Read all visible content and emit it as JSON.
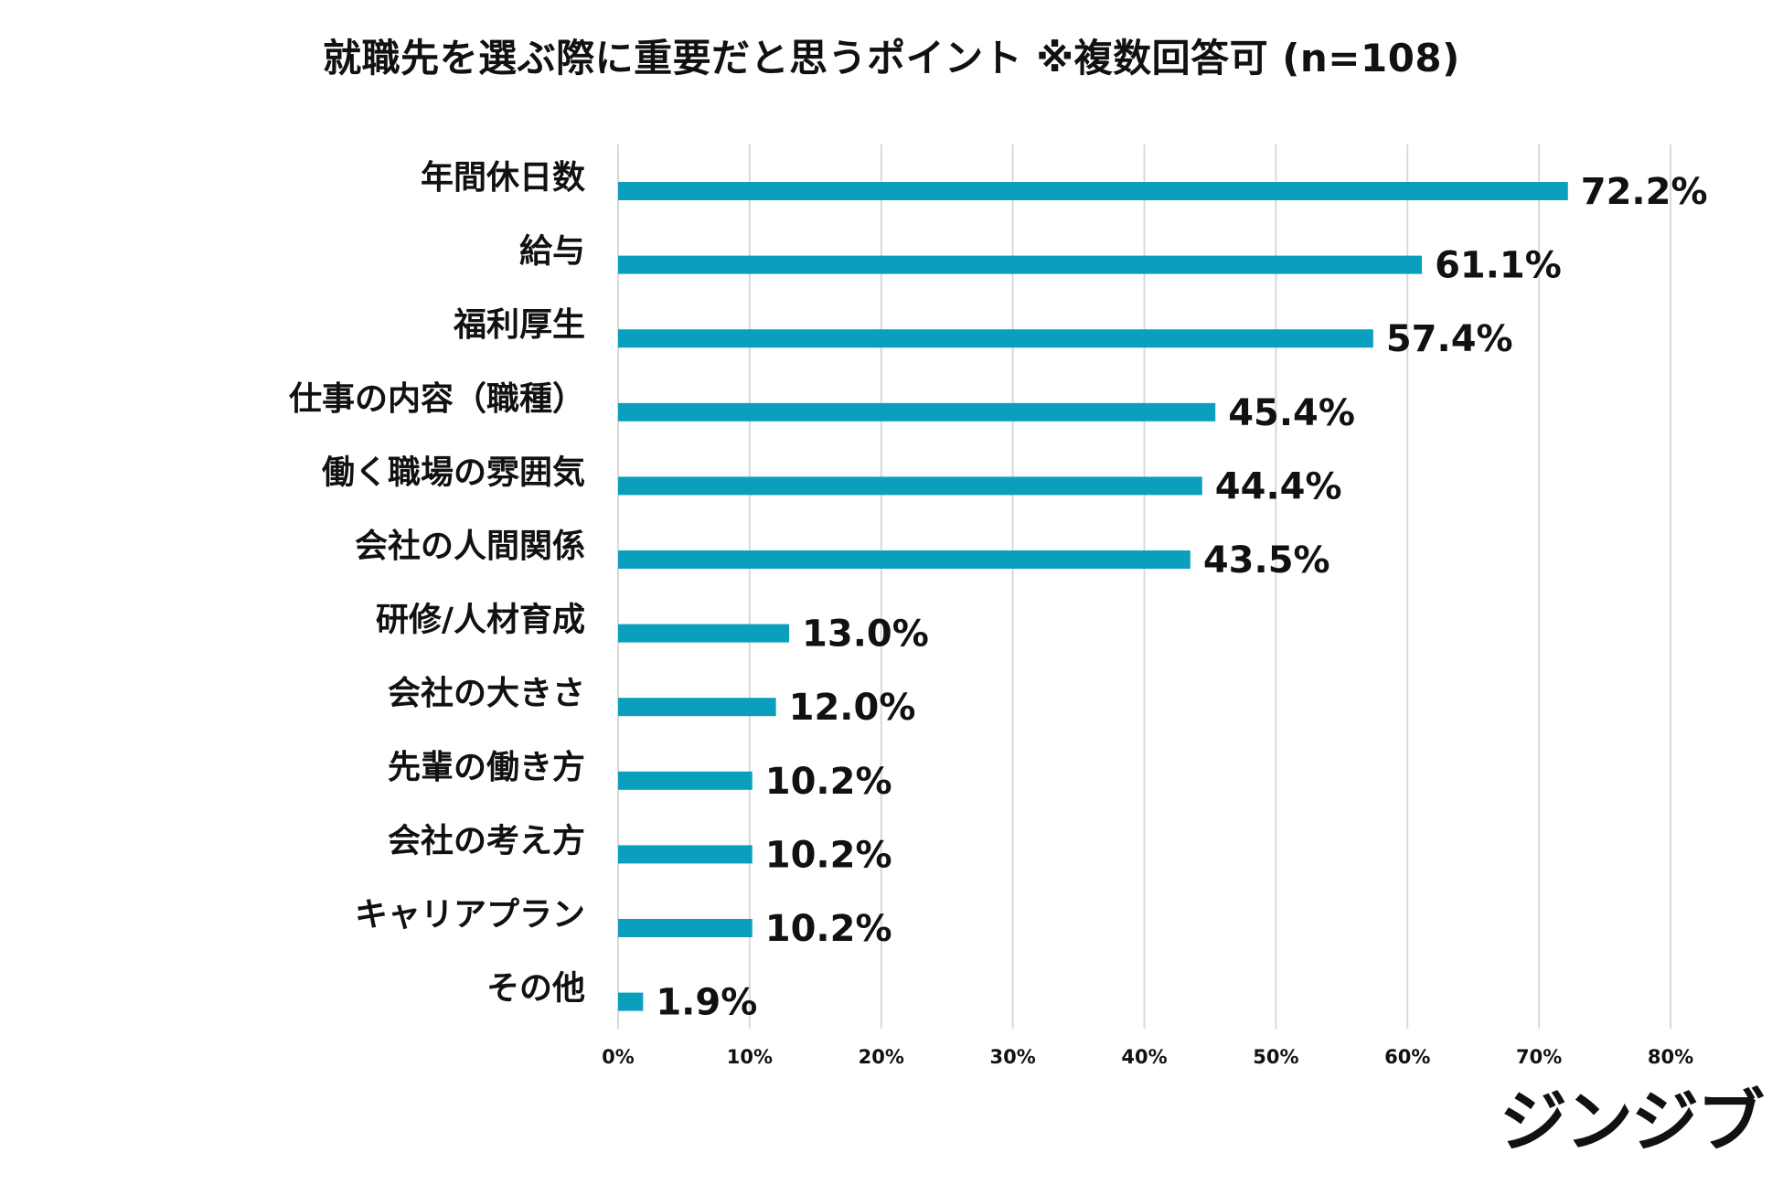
{
  "chart_data": {
    "type": "bar",
    "orientation": "horizontal",
    "title": "就職先を選ぶ際に重要だと思うポイント ※複数回答可 (n=108)",
    "categories": [
      "年間休日数",
      "給与",
      "福利厚生",
      "仕事の内容（職種）",
      "働く職場の雰囲気",
      "会社の人間関係",
      "研修/人材育成",
      "会社の大きさ",
      "先輩の働き方",
      "会社の考え方",
      "キャリアプラン",
      "その他"
    ],
    "values": [
      72.2,
      61.1,
      57.4,
      45.4,
      44.4,
      43.5,
      13.0,
      12.0,
      10.2,
      10.2,
      10.2,
      1.9
    ],
    "value_labels": [
      "72.2%",
      "61.1%",
      "57.4%",
      "45.4%",
      "44.4%",
      "43.5%",
      "13.0%",
      "12.0%",
      "10.2%",
      "10.2%",
      "10.2%",
      "1.9%"
    ],
    "xlim": [
      0,
      80
    ],
    "xticks": [
      0,
      10,
      20,
      30,
      40,
      50,
      60,
      70,
      80
    ],
    "xtick_labels": [
      "0%",
      "10%",
      "20%",
      "30%",
      "40%",
      "50%",
      "60%",
      "70%",
      "80%"
    ],
    "xlabel": "",
    "ylabel": "",
    "grid": true,
    "bar_color": "#0aa0bd",
    "grid_color": "#d9d9d9"
  },
  "brand": {
    "logo_text": "ジンジブ"
  }
}
